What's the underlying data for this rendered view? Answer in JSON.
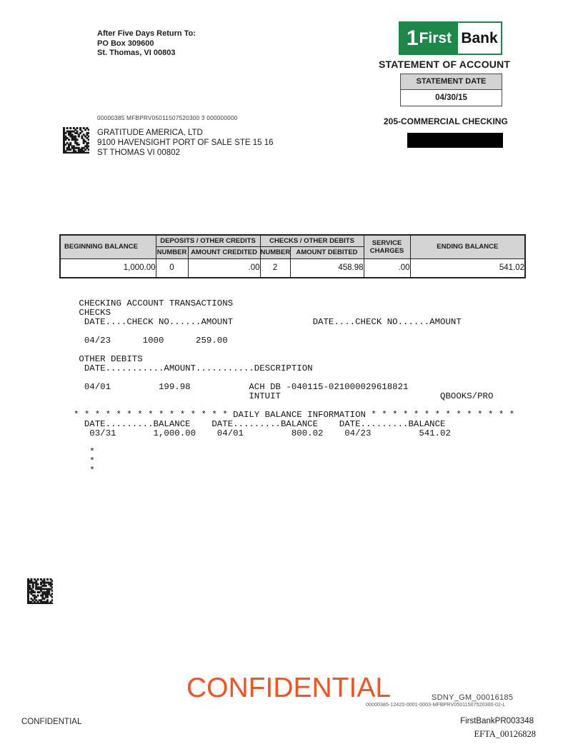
{
  "page": {
    "return_to": {
      "line1": "After Five Days Return To:",
      "line2": "PO Box 309600",
      "line3": "St. Thomas, VI  00803"
    },
    "logo": {
      "one": "1",
      "first": "First",
      "bank": "Bank"
    },
    "statement_of_account": "STATEMENT OF ACCOUNT",
    "statement_date": {
      "label": "STATEMENT DATE",
      "value": "04/30/15"
    },
    "mail_code": "00000385  MFBPRV05011507520300  3  000000000",
    "recipient": {
      "name": "GRATITUDE AMERICA, LTD",
      "street": "9100 HAVENSIGHT PORT OF SALE STE 15 16",
      "city": "ST THOMAS VI  00802"
    },
    "account_heading": "205-COMMERCIAL CHECKING"
  },
  "summary_table": {
    "labels": {
      "beginning_balance": "BEGINNING BALANCE",
      "deposits_credits": "DEPOSITS / OTHER CREDITS",
      "checks_debits": "CHECKS / OTHER DEBITS",
      "number_credits": "NUMBER",
      "amount_credited": "AMOUNT CREDITED",
      "number_debits": "NUMBER",
      "amount_debited": "AMOUNT DEBITED",
      "service_charges": "SERVICE CHARGES",
      "ending_balance": "ENDING BALANCE"
    },
    "values": {
      "beginning_balance": "1,000.00",
      "deposits_number": "0",
      "amount_credited": ".00",
      "checks_number": "2",
      "amount_debited": "458.98",
      "service_charges": ".00",
      "ending_balance": "541.02"
    }
  },
  "transactions": {
    "lines": [
      " CHECKING ACCOUNT TRANSACTIONS",
      " CHECKS",
      "  DATE....CHECK NO......AMOUNT               DATE....CHECK NO......AMOUNT",
      "",
      "  04/23      1000      259.00",
      "",
      " OTHER DEBITS",
      "  DATE...........AMOUNT...........DESCRIPTION",
      "",
      "  04/01         199.98           ACH DB -040115-021000029618821",
      "                                 INTUIT                              QBOOKS/PRO",
      "",
      "* * * * * * * * * * * * * * * DAILY BALANCE INFORMATION * * * * * * * * * * * * * *",
      "  DATE.........BALANCE    DATE.........BALANCE    DATE.........BALANCE",
      "   03/31       1,000.00    04/01         800.02    04/23         541.02",
      "",
      "   *",
      "   *",
      "   *"
    ]
  },
  "stamps": {
    "watermark": "CONFIDENTIAL",
    "sdny": "SDNY_GM_00016185",
    "control_line": "00000385-12420-0001-0003-MFBPRV05011507520300-02-L",
    "footer_confidential": "CONFIDENTIAL",
    "bates": "FirstBankPR003348",
    "efta": "EFTA_00126828"
  },
  "colors": {
    "brand_green": "#1d8649",
    "watermark_orange": "#f4531d",
    "table_header_gray": "#d4d4d4",
    "redaction_black": "#000000"
  }
}
